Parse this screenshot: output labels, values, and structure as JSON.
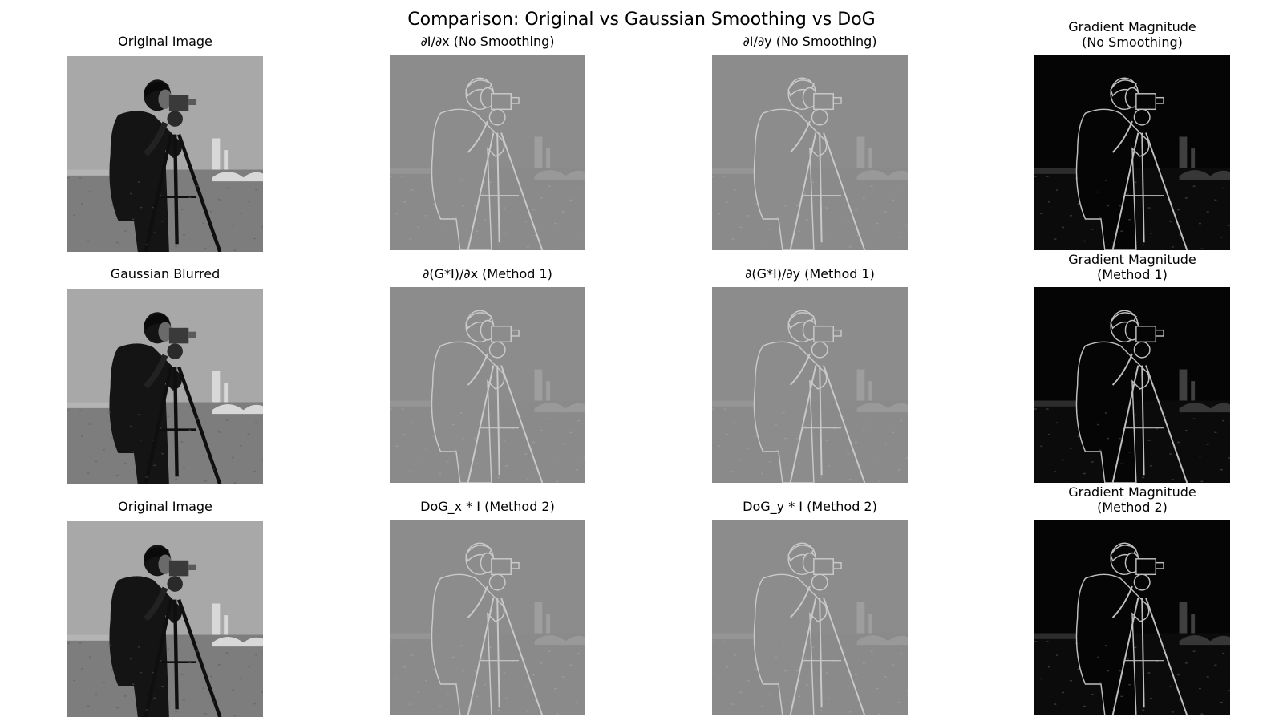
{
  "figure": {
    "title": "Comparison: Original vs Gaussian Smoothing vs DoG"
  },
  "panels": [
    {
      "title": "Original Image",
      "kind": "original"
    },
    {
      "title": "∂I/∂x (No Smoothing)",
      "kind": "deriv"
    },
    {
      "title": "∂I/∂y (No Smoothing)",
      "kind": "deriv"
    },
    {
      "title": "Gradient Magnitude\n(No Smoothing)",
      "kind": "magnitude"
    },
    {
      "title": "Gaussian Blurred",
      "kind": "original"
    },
    {
      "title": "∂(G*I)/∂x (Method 1)",
      "kind": "deriv"
    },
    {
      "title": "∂(G*I)/∂y (Method 1)",
      "kind": "deriv"
    },
    {
      "title": "Gradient Magnitude\n(Method 1)",
      "kind": "magnitude"
    },
    {
      "title": "Original Image",
      "kind": "original"
    },
    {
      "title": "DoG_x * I (Method 2)",
      "kind": "deriv"
    },
    {
      "title": "DoG_y * I (Method 2)",
      "kind": "deriv"
    },
    {
      "title": "Gradient Magnitude\n(Method 2)",
      "kind": "magnitude"
    }
  ]
}
